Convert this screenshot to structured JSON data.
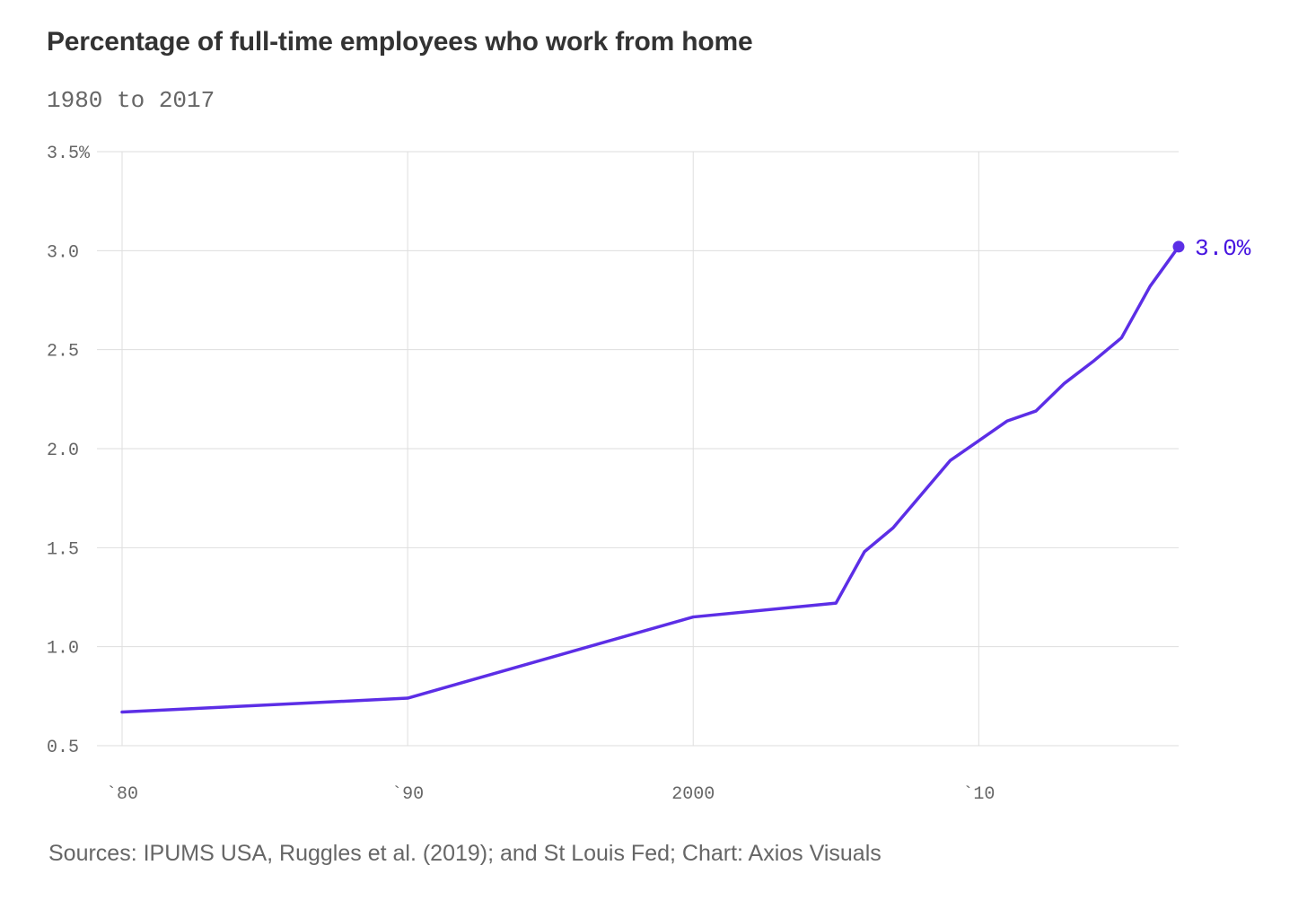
{
  "chart_data": {
    "type": "line",
    "title": "Percentage of full-time employees who work from home",
    "subtitle": "1980 to 2017",
    "source": "Sources: IPUMS USA, Ruggles et al. (2019); and St Louis Fed; Chart: Axios Visuals",
    "xlabel": "",
    "ylabel": "",
    "xlim": [
      1980,
      2017
    ],
    "ylim": [
      0.5,
      3.5
    ],
    "grid": true,
    "x_ticks": [
      {
        "value": 1980,
        "label": "`80"
      },
      {
        "value": 1990,
        "label": "`90"
      },
      {
        "value": 2000,
        "label": "2000"
      },
      {
        "value": 2010,
        "label": "`10"
      }
    ],
    "y_ticks": [
      {
        "value": 0.5,
        "label": "0.5"
      },
      {
        "value": 1.0,
        "label": "1.0"
      },
      {
        "value": 1.5,
        "label": "1.5"
      },
      {
        "value": 2.0,
        "label": "2.0"
      },
      {
        "value": 2.5,
        "label": "2.5"
      },
      {
        "value": 3.0,
        "label": "3.0"
      },
      {
        "value": 3.5,
        "label": "3.5%"
      }
    ],
    "series": [
      {
        "color": "#5c2ee6",
        "x": [
          1980,
          1990,
          2000,
          2005,
          2006,
          2007,
          2008,
          2009,
          2010,
          2011,
          2012,
          2013,
          2014,
          2015,
          2016,
          2017
        ],
        "values": [
          0.67,
          0.74,
          1.15,
          1.22,
          1.48,
          1.6,
          1.77,
          1.94,
          2.04,
          2.14,
          2.19,
          2.33,
          2.44,
          2.56,
          2.82,
          3.02
        ]
      }
    ],
    "end_label": {
      "text": "3.0%",
      "color": "#4715e0"
    }
  }
}
